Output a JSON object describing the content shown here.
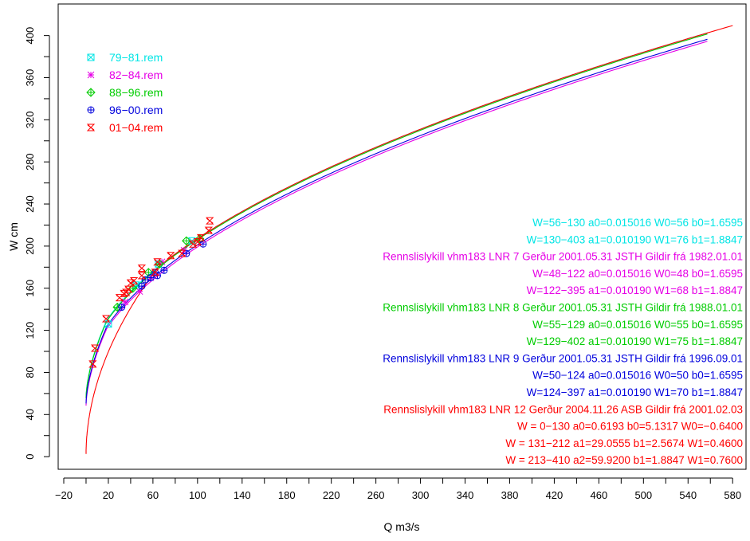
{
  "chart_data": {
    "type": "line",
    "title": "",
    "xlabel": "Q m3/s",
    "ylabel": "W cm",
    "xlim": [
      -25,
      592
    ],
    "ylim": [
      -12,
      430
    ],
    "x_ticks": [
      -20,
      20,
      60,
      100,
      140,
      180,
      220,
      260,
      300,
      340,
      380,
      420,
      460,
      500,
      540,
      580
    ],
    "x_ticks_minor": [
      0,
      40,
      80,
      120,
      160,
      200,
      240,
      280,
      320,
      360,
      400,
      440,
      480,
      520,
      560
    ],
    "y_ticks": [
      0,
      40,
      80,
      120,
      160,
      200,
      240,
      280,
      320,
      360,
      400
    ],
    "y_ticks_minor": [
      20,
      60,
      100,
      140,
      180,
      220,
      260,
      300,
      340,
      380
    ],
    "legend_position": "top-left",
    "series": [
      {
        "name": "79-81.rem",
        "color": "#00e5e5",
        "marker": "square-x",
        "points": [
          [
            20,
            126
          ],
          [
            45,
            163
          ],
          [
            65,
            183
          ],
          [
            95,
            205
          ]
        ]
      },
      {
        "name": "82-84.rem",
        "color": "#e600e6",
        "marker": "asterisk",
        "points": [
          [
            35,
            147
          ],
          [
            48,
            157
          ],
          [
            58,
            170
          ],
          [
            68,
            185
          ],
          [
            88,
            196
          ]
        ]
      },
      {
        "name": "88-96.rem",
        "color": "#00cc00",
        "marker": "diamond-plus",
        "points": [
          [
            28,
            142
          ],
          [
            42,
            160
          ],
          [
            56,
            175
          ],
          [
            66,
            183
          ],
          [
            90,
            205
          ],
          [
            102,
            207
          ]
        ]
      },
      {
        "name": "96-00.rem",
        "color": "#0000dd",
        "marker": "circle-plus",
        "points": [
          [
            32,
            142
          ],
          [
            50,
            162
          ],
          [
            53,
            168
          ],
          [
            58,
            170
          ],
          [
            62,
            175
          ],
          [
            64,
            172
          ],
          [
            70,
            177
          ],
          [
            90,
            193
          ],
          [
            105,
            202
          ]
        ]
      },
      {
        "name": "01-04.rem",
        "color": "#ff0000",
        "marker": "hourglass",
        "points": [
          [
            6,
            88
          ],
          [
            8,
            103
          ],
          [
            18,
            131
          ],
          [
            30,
            151
          ],
          [
            34,
            155
          ],
          [
            36,
            156
          ],
          [
            38,
            159
          ],
          [
            40,
            165
          ],
          [
            43,
            167
          ],
          [
            50,
            172
          ],
          [
            50,
            179
          ],
          [
            62,
            175
          ],
          [
            64,
            185
          ],
          [
            76,
            191
          ],
          [
            86,
            193
          ],
          [
            96,
            202
          ],
          [
            100,
            204
          ],
          [
            103,
            208
          ],
          [
            110,
            215
          ],
          [
            111,
            224
          ]
        ]
      }
    ],
    "curves": [
      {
        "color": "#00e5e5",
        "z1": 56,
        "b1": 1.6595,
        "z2": 76,
        "b2": 1.8847,
        "a2": 0.01019,
        "wbreak": 130,
        "wmax": 403
      },
      {
        "color": "#e600e6",
        "z1": 48,
        "b1": 1.6595,
        "z2": 68,
        "b2": 1.8847,
        "a2": 0.01019,
        "wbreak": 122,
        "wmax": 395
      },
      {
        "color": "#00cc00",
        "z1": 55,
        "b1": 1.6595,
        "z2": 75,
        "b2": 1.8847,
        "a2": 0.01019,
        "wbreak": 129,
        "wmax": 402
      },
      {
        "color": "#0000dd",
        "z1": 50,
        "b1": 1.6595,
        "z2": 70,
        "b2": 1.8847,
        "a2": 0.01019,
        "wbreak": 124,
        "wmax": 397
      },
      {
        "color": "#ff0000",
        "z1": 2,
        "b1": 1.95,
        "z2": 76,
        "b2": 1.8847,
        "a2": 0.01019,
        "wbreak": 180,
        "wmax": 410
      }
    ],
    "annotations": [
      {
        "color": "#00e5e5",
        "text": "W=56−130 a0=0.015016 W0=56 b0=1.6595"
      },
      {
        "color": "#00e5e5",
        "text": "W=130−403 a1=0.010190 W1=76 b1=1.8847"
      },
      {
        "color": "#e600e6",
        "text": "Rennslislykill   vhm183   LNR  7    Gerður 2001.05.31   JSTH      Gildir frá 1982.01.01"
      },
      {
        "color": "#e600e6",
        "text": "W=48−122 a0=0.015016 W0=48 b0=1.6595"
      },
      {
        "color": "#e600e6",
        "text": "W=122−395 a1=0.010190 W1=68 b1=1.8847"
      },
      {
        "color": "#00cc00",
        "text": "Rennslislykill   vhm183   LNR  8    Gerður 2001.05.31   JSTH      Gildir frá 1988.01.01"
      },
      {
        "color": "#00cc00",
        "text": "W=55−129 a0=0.015016 W0=55 b0=1.6595"
      },
      {
        "color": "#00cc00",
        "text": "W=129−402 a1=0.010190 W1=75 b1=1.8847"
      },
      {
        "color": "#0000dd",
        "text": "Rennslislykill   vhm183   LNR  9    Gerður 2001.05.31   JSTH      Gildir frá 1996.09.01"
      },
      {
        "color": "#0000dd",
        "text": "W=50−124 a0=0.015016 W0=50 b0=1.6595"
      },
      {
        "color": "#0000dd",
        "text": "W=124−397 a1=0.010190 W1=70 b1=1.8847"
      },
      {
        "color": "#ff0000",
        "text": "Rennslislykill   vhm183   LNR 12    Gerður 2004.11.26   ASB     Gildir frá 2001.02.03"
      },
      {
        "color": "#ff0000",
        "text": "W = 0−130 a0=0.6193 b0=5.1317 W0=−0.6400"
      },
      {
        "color": "#ff0000",
        "text": "W = 131−212 a1=29.0555 b1=2.5674 W1=0.4600"
      },
      {
        "color": "#ff0000",
        "text": "W = 213−410 a2=59.9200 b1=1.8847 W1=0.7600"
      }
    ]
  }
}
